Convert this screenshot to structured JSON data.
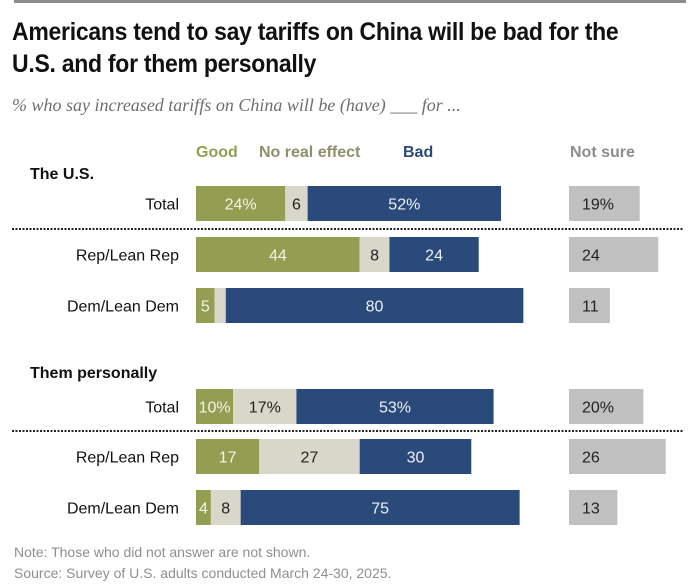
{
  "chart_data": {
    "type": "bar",
    "stacked": true,
    "orientation": "horizontal",
    "title": "Americans tend to say tariffs on China will be bad for the U.S. and for them personally",
    "subtitle": "% who say increased tariffs on China will be (have) ___ for ...",
    "legend": [
      {
        "key": "good",
        "label": "Good",
        "color": "#939e53",
        "text_color": "#939e53"
      },
      {
        "key": "no_effect",
        "label": "No real effect",
        "color": "#d8d7c9",
        "text_color": "#8f8f6a"
      },
      {
        "key": "bad",
        "label": "Bad",
        "color": "#2b4a7c",
        "text_color": "#2b4a7c"
      },
      {
        "key": "not_sure",
        "label": "Not sure",
        "color": "#c0c0c0",
        "text_color": "#8d8d8d"
      }
    ],
    "legend_placement": "top",
    "groups": [
      {
        "label": "The U.S.",
        "rows": [
          {
            "label": "Total",
            "good": 24,
            "no_effect": 6,
            "bad": 52,
            "not_sure": 19,
            "labels": {
              "good": "24%",
              "no_effect": "6",
              "bad": "52%",
              "not_sure": "19%"
            }
          },
          {
            "label": "Rep/Lean Rep",
            "good": 44,
            "no_effect": 8,
            "bad": 24,
            "not_sure": 24,
            "labels": {
              "good": "44",
              "no_effect": "8",
              "bad": "24",
              "not_sure": "24"
            }
          },
          {
            "label": "Dem/Lean Dem",
            "good": 5,
            "no_effect": 3,
            "bad": 80,
            "not_sure": 11,
            "labels": {
              "good": "5",
              "no_effect": "",
              "bad": "80",
              "not_sure": "11"
            }
          }
        ]
      },
      {
        "label": "Them personally",
        "rows": [
          {
            "label": "Total",
            "good": 10,
            "no_effect": 17,
            "bad": 53,
            "not_sure": 20,
            "labels": {
              "good": "10%",
              "no_effect": "17%",
              "bad": "53%",
              "not_sure": "20%"
            }
          },
          {
            "label": "Rep/Lean Rep",
            "good": 17,
            "no_effect": 27,
            "bad": 30,
            "not_sure": 26,
            "labels": {
              "good": "17",
              "no_effect": "27",
              "bad": "30",
              "not_sure": "26"
            }
          },
          {
            "label": "Dem/Lean Dem",
            "good": 4,
            "no_effect": 8,
            "bad": 75,
            "not_sure": 13,
            "labels": {
              "good": "4",
              "no_effect": "8",
              "bad": "75",
              "not_sure": "13"
            }
          }
        ]
      }
    ],
    "value_unit": "%",
    "grid": false
  },
  "footer": {
    "note": "Note: Those who did not answer are not shown.",
    "source": "Source: Survey of U.S. adults conducted March 24-30, 2025."
  }
}
